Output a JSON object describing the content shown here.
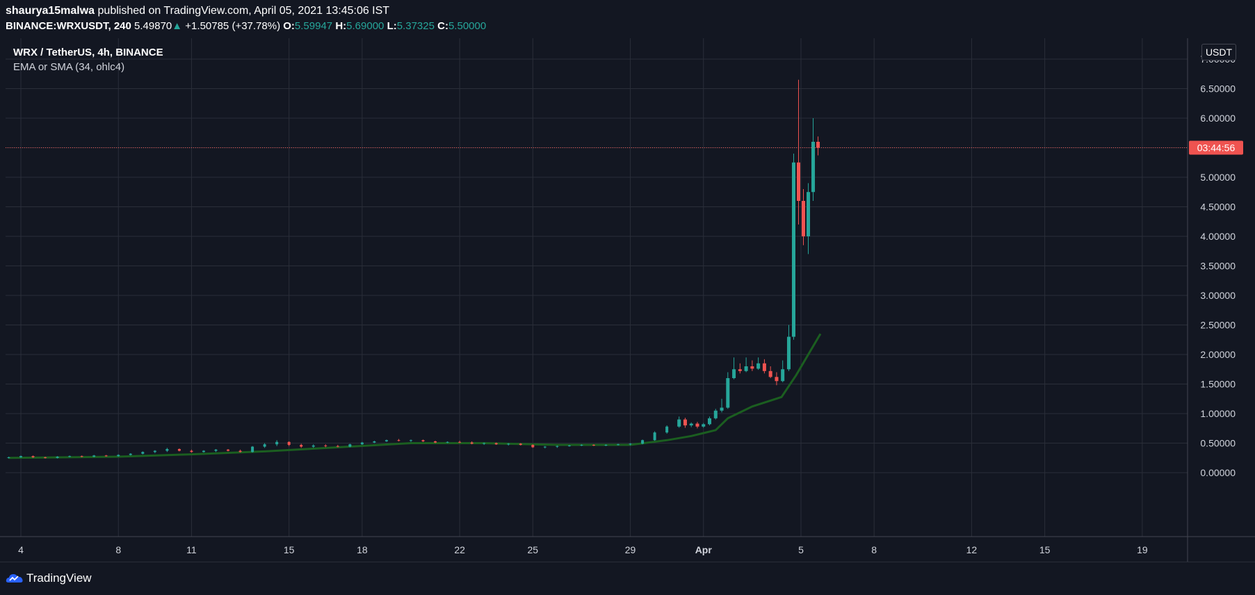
{
  "header": {
    "author": "shaurya15malwa",
    "published_text": "published on TradingView.com, April 05, 2021 13:45:06 IST",
    "symbol": "BINANCE:WRXUSDT, 240",
    "last_price": "5.49870",
    "arrow": "▲",
    "change": "+1.50785 (+37.78%)",
    "open_label": "O:",
    "open_value": "5.59947",
    "high_label": "H:",
    "high_value": "5.69000",
    "low_label": "L:",
    "low_value": "5.37325",
    "close_label": "C:",
    "close_value": "5.50000"
  },
  "legend": {
    "title": "WRX / TetherUS, 4h, BINANCE",
    "indicator": "EMA or SMA (34, ohlc4)"
  },
  "price_axis": {
    "unit": "USDT",
    "countdown": "03:44:56",
    "last_price_level": 5.5
  },
  "footer": {
    "brand": "TradingView"
  },
  "colors": {
    "background": "#131722",
    "up": "#26a69a",
    "down": "#ef5350",
    "ema": "#1b5e20",
    "grid": "#2a2e39",
    "price_line": "#ef5350"
  },
  "chart_data": {
    "type": "candlestick",
    "title": "WRX / TetherUS, 4h, BINANCE",
    "y_ticks": [
      0,
      0.5,
      1,
      1.5,
      2,
      2.5,
      3,
      3.5,
      4,
      4.5,
      5,
      5.5,
      6,
      6.5,
      7
    ],
    "y_tick_labels": [
      "0.00000",
      "0.50000",
      "1.00000",
      "1.50000",
      "2.00000",
      "2.50000",
      "3.00000",
      "3.50000",
      "4.00000",
      "4.50000",
      "5.00000",
      "5.50000",
      "6.00000",
      "6.50000",
      "7.00000"
    ],
    "ylim": [
      -0.4,
      7.5
    ],
    "x_ticks": [
      {
        "label": "4",
        "day": 4
      },
      {
        "label": "8",
        "day": 8
      },
      {
        "label": "11",
        "day": 11
      },
      {
        "label": "15",
        "day": 15
      },
      {
        "label": "18",
        "day": 18
      },
      {
        "label": "22",
        "day": 22
      },
      {
        "label": "25",
        "day": 25
      },
      {
        "label": "29",
        "day": 29
      },
      {
        "label": "Apr",
        "day": 32,
        "bold": true
      },
      {
        "label": "5",
        "day": 36
      },
      {
        "label": "8",
        "day": 39
      },
      {
        "label": "12",
        "day": 43
      },
      {
        "label": "15",
        "day": 46
      },
      {
        "label": "19",
        "day": 50
      }
    ],
    "xlim": [
      3.4,
      52
    ],
    "series": [
      {
        "name": "WRX / TetherUS",
        "type": "candlestick",
        "points": [
          {
            "d": 3.5,
            "o": 0.25,
            "h": 0.27,
            "l": 0.24,
            "c": 0.26
          },
          {
            "d": 4.0,
            "o": 0.26,
            "h": 0.29,
            "l": 0.25,
            "c": 0.28
          },
          {
            "d": 4.5,
            "o": 0.28,
            "h": 0.29,
            "l": 0.25,
            "c": 0.26
          },
          {
            "d": 5.0,
            "o": 0.26,
            "h": 0.27,
            "l": 0.24,
            "c": 0.25
          },
          {
            "d": 5.5,
            "o": 0.25,
            "h": 0.28,
            "l": 0.24,
            "c": 0.27
          },
          {
            "d": 6.0,
            "o": 0.27,
            "h": 0.29,
            "l": 0.26,
            "c": 0.28
          },
          {
            "d": 6.5,
            "o": 0.28,
            "h": 0.29,
            "l": 0.26,
            "c": 0.27
          },
          {
            "d": 7.0,
            "o": 0.27,
            "h": 0.3,
            "l": 0.26,
            "c": 0.29
          },
          {
            "d": 7.5,
            "o": 0.29,
            "h": 0.3,
            "l": 0.27,
            "c": 0.28
          },
          {
            "d": 8.0,
            "o": 0.28,
            "h": 0.31,
            "l": 0.27,
            "c": 0.3
          },
          {
            "d": 8.5,
            "o": 0.3,
            "h": 0.33,
            "l": 0.29,
            "c": 0.32
          },
          {
            "d": 9.0,
            "o": 0.32,
            "h": 0.36,
            "l": 0.31,
            "c": 0.35
          },
          {
            "d": 9.5,
            "o": 0.35,
            "h": 0.38,
            "l": 0.33,
            "c": 0.37
          },
          {
            "d": 10.0,
            "o": 0.37,
            "h": 0.42,
            "l": 0.35,
            "c": 0.4
          },
          {
            "d": 10.5,
            "o": 0.4,
            "h": 0.41,
            "l": 0.36,
            "c": 0.37
          },
          {
            "d": 11.0,
            "o": 0.37,
            "h": 0.39,
            "l": 0.34,
            "c": 0.35
          },
          {
            "d": 11.5,
            "o": 0.35,
            "h": 0.38,
            "l": 0.34,
            "c": 0.37
          },
          {
            "d": 12.0,
            "o": 0.37,
            "h": 0.4,
            "l": 0.35,
            "c": 0.39
          },
          {
            "d": 12.5,
            "o": 0.39,
            "h": 0.4,
            "l": 0.36,
            "c": 0.37
          },
          {
            "d": 13.0,
            "o": 0.37,
            "h": 0.39,
            "l": 0.34,
            "c": 0.35
          },
          {
            "d": 13.5,
            "o": 0.35,
            "h": 0.45,
            "l": 0.34,
            "c": 0.44
          },
          {
            "d": 14.0,
            "o": 0.44,
            "h": 0.5,
            "l": 0.42,
            "c": 0.48
          },
          {
            "d": 14.5,
            "o": 0.48,
            "h": 0.55,
            "l": 0.45,
            "c": 0.52
          },
          {
            "d": 15.0,
            "o": 0.52,
            "h": 0.53,
            "l": 0.45,
            "c": 0.47
          },
          {
            "d": 15.5,
            "o": 0.47,
            "h": 0.49,
            "l": 0.42,
            "c": 0.44
          },
          {
            "d": 16.0,
            "o": 0.44,
            "h": 0.48,
            "l": 0.42,
            "c": 0.46
          },
          {
            "d": 16.5,
            "o": 0.46,
            "h": 0.48,
            "l": 0.43,
            "c": 0.45
          },
          {
            "d": 17.0,
            "o": 0.45,
            "h": 0.47,
            "l": 0.43,
            "c": 0.44
          },
          {
            "d": 17.5,
            "o": 0.44,
            "h": 0.49,
            "l": 0.43,
            "c": 0.48
          },
          {
            "d": 18.0,
            "o": 0.48,
            "h": 0.52,
            "l": 0.47,
            "c": 0.51
          },
          {
            "d": 18.5,
            "o": 0.51,
            "h": 0.54,
            "l": 0.5,
            "c": 0.53
          },
          {
            "d": 19.0,
            "o": 0.53,
            "h": 0.56,
            "l": 0.52,
            "c": 0.55
          },
          {
            "d": 19.5,
            "o": 0.55,
            "h": 0.57,
            "l": 0.53,
            "c": 0.54
          },
          {
            "d": 20.0,
            "o": 0.54,
            "h": 0.56,
            "l": 0.52,
            "c": 0.55
          },
          {
            "d": 20.5,
            "o": 0.55,
            "h": 0.56,
            "l": 0.52,
            "c": 0.53
          },
          {
            "d": 21.0,
            "o": 0.53,
            "h": 0.54,
            "l": 0.5,
            "c": 0.51
          },
          {
            "d": 21.5,
            "o": 0.51,
            "h": 0.53,
            "l": 0.5,
            "c": 0.52
          },
          {
            "d": 22.0,
            "o": 0.52,
            "h": 0.54,
            "l": 0.5,
            "c": 0.51
          },
          {
            "d": 22.5,
            "o": 0.51,
            "h": 0.53,
            "l": 0.48,
            "c": 0.49
          },
          {
            "d": 23.0,
            "o": 0.49,
            "h": 0.51,
            "l": 0.47,
            "c": 0.5
          },
          {
            "d": 23.5,
            "o": 0.5,
            "h": 0.51,
            "l": 0.47,
            "c": 0.48
          },
          {
            "d": 24.0,
            "o": 0.48,
            "h": 0.5,
            "l": 0.46,
            "c": 0.49
          },
          {
            "d": 24.5,
            "o": 0.49,
            "h": 0.5,
            "l": 0.46,
            "c": 0.47
          },
          {
            "d": 25.0,
            "o": 0.47,
            "h": 0.48,
            "l": 0.42,
            "c": 0.43
          },
          {
            "d": 25.5,
            "o": 0.43,
            "h": 0.45,
            "l": 0.41,
            "c": 0.44
          },
          {
            "d": 26.0,
            "o": 0.44,
            "h": 0.46,
            "l": 0.42,
            "c": 0.45
          },
          {
            "d": 26.5,
            "o": 0.45,
            "h": 0.47,
            "l": 0.44,
            "c": 0.46
          },
          {
            "d": 27.0,
            "o": 0.46,
            "h": 0.48,
            "l": 0.45,
            "c": 0.47
          },
          {
            "d": 27.5,
            "o": 0.47,
            "h": 0.48,
            "l": 0.45,
            "c": 0.46
          },
          {
            "d": 28.0,
            "o": 0.46,
            "h": 0.48,
            "l": 0.45,
            "c": 0.47
          },
          {
            "d": 28.5,
            "o": 0.47,
            "h": 0.49,
            "l": 0.46,
            "c": 0.48
          },
          {
            "d": 29.0,
            "o": 0.48,
            "h": 0.5,
            "l": 0.46,
            "c": 0.49
          },
          {
            "d": 29.5,
            "o": 0.49,
            "h": 0.56,
            "l": 0.48,
            "c": 0.55
          },
          {
            "d": 30.0,
            "o": 0.55,
            "h": 0.7,
            "l": 0.54,
            "c": 0.68
          },
          {
            "d": 30.5,
            "o": 0.68,
            "h": 0.8,
            "l": 0.66,
            "c": 0.78
          },
          {
            "d": 31.0,
            "o": 0.78,
            "h": 0.95,
            "l": 0.76,
            "c": 0.9
          },
          {
            "d": 31.25,
            "o": 0.9,
            "h": 0.93,
            "l": 0.76,
            "c": 0.8
          },
          {
            "d": 31.5,
            "o": 0.8,
            "h": 0.85,
            "l": 0.77,
            "c": 0.83
          },
          {
            "d": 31.75,
            "o": 0.83,
            "h": 0.86,
            "l": 0.75,
            "c": 0.78
          },
          {
            "d": 32.0,
            "o": 0.78,
            "h": 0.84,
            "l": 0.76,
            "c": 0.82
          },
          {
            "d": 32.25,
            "o": 0.82,
            "h": 0.95,
            "l": 0.8,
            "c": 0.92
          },
          {
            "d": 32.5,
            "o": 0.92,
            "h": 1.08,
            "l": 0.9,
            "c": 1.05
          },
          {
            "d": 32.75,
            "o": 1.05,
            "h": 1.25,
            "l": 1.02,
            "c": 1.1
          },
          {
            "d": 33.0,
            "o": 1.1,
            "h": 1.7,
            "l": 1.08,
            "c": 1.6
          },
          {
            "d": 33.25,
            "o": 1.6,
            "h": 1.95,
            "l": 1.58,
            "c": 1.75
          },
          {
            "d": 33.5,
            "o": 1.75,
            "h": 1.85,
            "l": 1.68,
            "c": 1.72
          },
          {
            "d": 33.75,
            "o": 1.72,
            "h": 1.95,
            "l": 1.7,
            "c": 1.8
          },
          {
            "d": 34.0,
            "o": 1.8,
            "h": 1.9,
            "l": 1.72,
            "c": 1.76
          },
          {
            "d": 34.25,
            "o": 1.76,
            "h": 1.95,
            "l": 1.74,
            "c": 1.85
          },
          {
            "d": 34.5,
            "o": 1.85,
            "h": 1.92,
            "l": 1.68,
            "c": 1.72
          },
          {
            "d": 34.75,
            "o": 1.72,
            "h": 1.8,
            "l": 1.6,
            "c": 1.62
          },
          {
            "d": 35.0,
            "o": 1.62,
            "h": 1.7,
            "l": 1.48,
            "c": 1.55
          },
          {
            "d": 35.25,
            "o": 1.55,
            "h": 1.9,
            "l": 1.53,
            "c": 1.75
          },
          {
            "d": 35.5,
            "o": 1.75,
            "h": 2.5,
            "l": 1.72,
            "c": 2.3
          },
          {
            "d": 35.7,
            "o": 2.3,
            "h": 5.4,
            "l": 2.25,
            "c": 5.25
          },
          {
            "d": 35.9,
            "o": 5.25,
            "h": 6.65,
            "l": 4.2,
            "c": 4.6
          },
          {
            "d": 36.1,
            "o": 4.6,
            "h": 4.8,
            "l": 3.85,
            "c": 4.0
          },
          {
            "d": 36.3,
            "o": 4.0,
            "h": 4.9,
            "l": 3.7,
            "c": 4.75
          },
          {
            "d": 36.5,
            "o": 4.75,
            "h": 6.0,
            "l": 4.6,
            "c": 5.6
          },
          {
            "d": 36.7,
            "o": 5.6,
            "h": 5.69,
            "l": 5.37,
            "c": 5.5
          }
        ]
      },
      {
        "name": "EMA or SMA (34, ohlc4)",
        "type": "line",
        "x": [
          3.5,
          8,
          11,
          14,
          17,
          20,
          23,
          26,
          29,
          30.5,
          31.5,
          32.5,
          33,
          34,
          35.2,
          35.8,
          36.3,
          36.8
        ],
        "y": [
          0.25,
          0.27,
          0.31,
          0.36,
          0.43,
          0.5,
          0.5,
          0.47,
          0.47,
          0.55,
          0.62,
          0.72,
          0.92,
          1.12,
          1.28,
          1.65,
          2.0,
          2.35
        ]
      }
    ]
  }
}
